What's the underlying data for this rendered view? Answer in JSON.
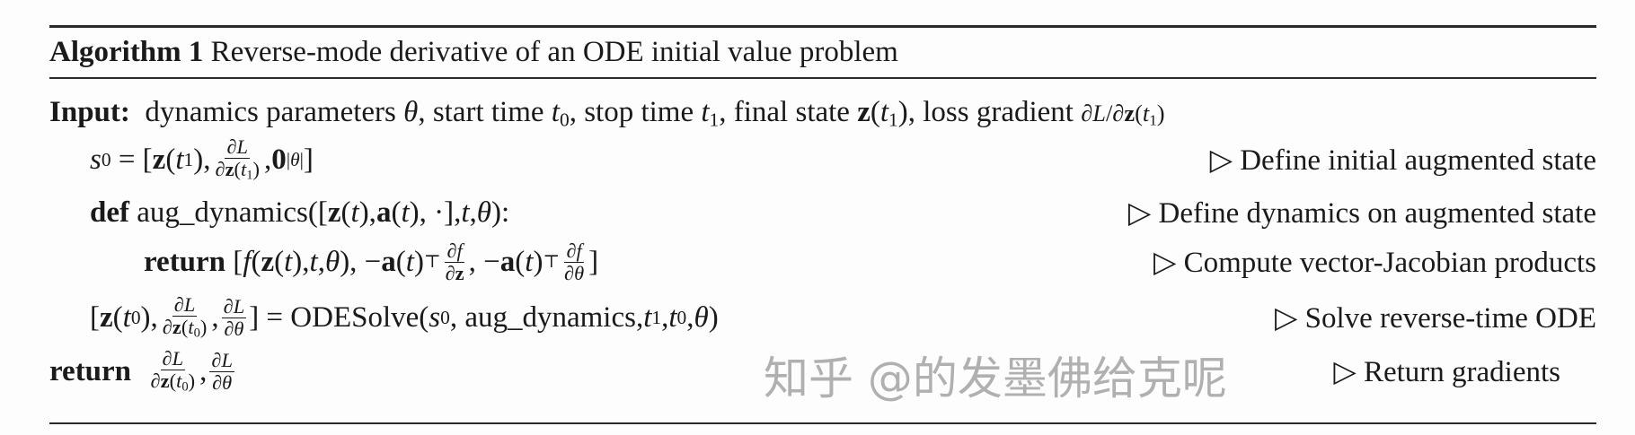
{
  "algorithm": {
    "label": "Algorithm 1",
    "title": "Reverse-mode derivative of an ODE initial value problem",
    "input_label": "Input:",
    "input_text_1": "dynamics parameters",
    "input_text_2": ", start time",
    "input_text_3": ", stop time",
    "input_text_4": ", final state",
    "input_text_5": ", loss gradient",
    "lines": [
      {
        "comment": "▷ Define initial augmented state"
      },
      {
        "keyword": "def",
        "text": "aug_dynamics(",
        "comment": "▷ Define dynamics on augmented state"
      },
      {
        "keyword": "return",
        "comment": "▷ Compute vector-Jacobian products"
      },
      {
        "func": "ODESolve(",
        "args": "aug_dynamics",
        "comment": "▷ Solve reverse-time ODE"
      },
      {
        "keyword": "return",
        "comment": "▷ Return gradients"
      }
    ]
  },
  "watermark": "知乎 @的发墨佛给克呢"
}
